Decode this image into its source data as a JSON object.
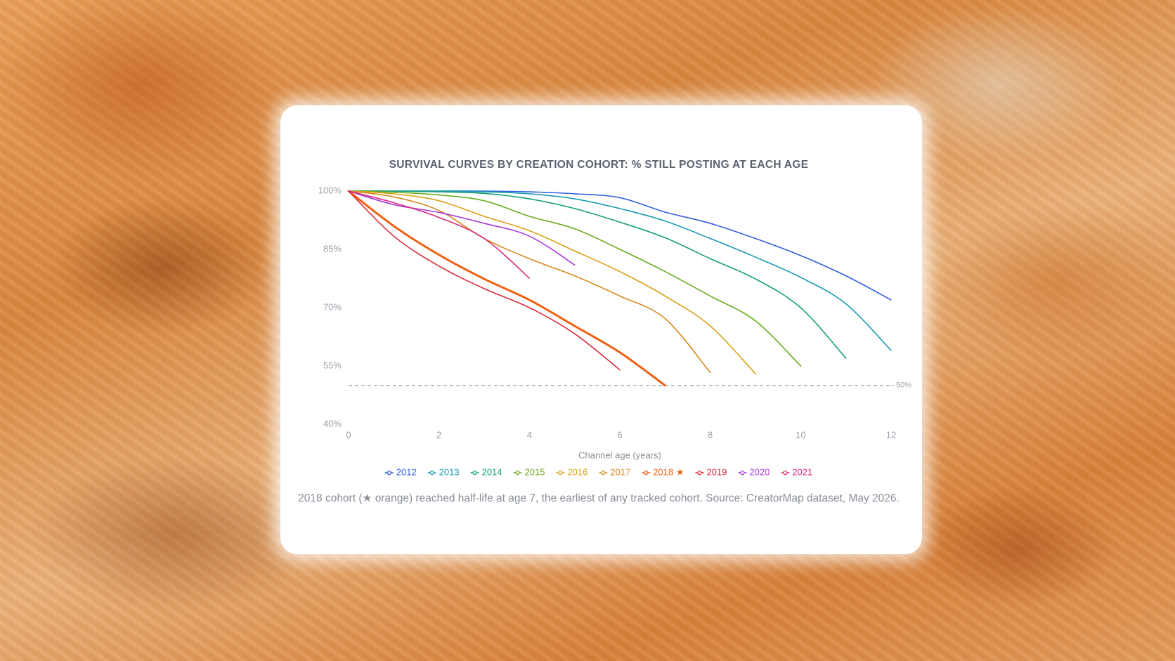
{
  "chart_data": {
    "type": "line",
    "title": "SURVIVAL CURVES BY CREATION COHORT: % STILL POSTING AT EACH AGE",
    "x_label": "Channel age (years)",
    "x": [
      0,
      1,
      2,
      3,
      4,
      5,
      6,
      7,
      8,
      9,
      10,
      11,
      12
    ],
    "xlim": [
      0,
      12
    ],
    "xticks": [
      0,
      2,
      4,
      6,
      8,
      10,
      12
    ],
    "ylim": [
      40,
      100
    ],
    "yticks": [
      {
        "value": 40,
        "label": "40%"
      },
      {
        "value": 55,
        "label": "55%"
      },
      {
        "value": 70,
        "label": "70%"
      },
      {
        "value": 85,
        "label": "85%"
      },
      {
        "value": 100,
        "label": "100%"
      }
    ],
    "reference_line": {
      "value": 50,
      "label": "50%"
    },
    "series": [
      {
        "name": "2012",
        "color": "#2f5fe0",
        "values": [
          100,
          100,
          100,
          100,
          99.8,
          99.3,
          98.3,
          94.6,
          91.7,
          87.8,
          83.4,
          78.2,
          72
        ]
      },
      {
        "name": "2013",
        "color": "#1a9bb5",
        "values": [
          100,
          100,
          100,
          99.8,
          99.3,
          98,
          95.5,
          92.3,
          87.8,
          83,
          77.8,
          71,
          59
        ]
      },
      {
        "name": "2014",
        "color": "#17a07a",
        "values": [
          100,
          100,
          99.8,
          99.4,
          98,
          95.5,
          92,
          88,
          82.6,
          77.4,
          70,
          57,
          null
        ]
      },
      {
        "name": "2015",
        "color": "#6aad1e",
        "values": [
          100,
          99.7,
          99,
          97.5,
          93.5,
          90.3,
          85,
          79.3,
          73,
          66.6,
          55,
          null,
          null
        ]
      },
      {
        "name": "2016",
        "color": "#d9a012",
        "values": [
          100,
          99.3,
          97.5,
          93.5,
          89.8,
          84.6,
          79.3,
          73,
          65.3,
          53,
          null,
          null,
          null
        ]
      },
      {
        "name": "2017",
        "color": "#d98a1f",
        "values": [
          100,
          98.5,
          95,
          87.8,
          82.6,
          78.2,
          73,
          67.2,
          53.3,
          null,
          null,
          null,
          null
        ]
      },
      {
        "name": "2018 ★",
        "color": "#f06010",
        "values": [
          100,
          91,
          83.6,
          77.4,
          72,
          65.3,
          58.5,
          50,
          null,
          null,
          null,
          null,
          null
        ]
      },
      {
        "name": "2019",
        "color": "#dc2a3a",
        "values": [
          100,
          88.4,
          80.7,
          74.9,
          70,
          63.3,
          54,
          null,
          null,
          null,
          null,
          null,
          null
        ]
      },
      {
        "name": "2020",
        "color": "#a63ad9",
        "values": [
          100,
          96.5,
          94.5,
          91.7,
          88.4,
          81,
          null,
          null,
          null,
          null,
          null,
          null,
          null
        ]
      },
      {
        "name": "2021",
        "color": "#d92a7a",
        "values": [
          100,
          97,
          93.2,
          87.8,
          77.6,
          null,
          null,
          null,
          null,
          null,
          null,
          null,
          null
        ]
      }
    ],
    "caption": "2018 cohort (★ orange) reached half-life at age 7, the earliest of any tracked cohort. Source: CreatorMap dataset, May 2026."
  }
}
